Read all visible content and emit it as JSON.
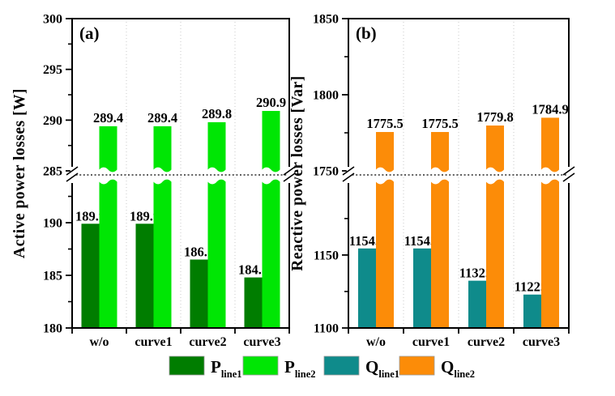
{
  "figure": {
    "background": "#ffffff",
    "frame_color": "#000000",
    "grid_color": "#c8c8c8",
    "break_line_style": "dashed",
    "legend_position": "bottom",
    "legend": [
      {
        "swatch_color": "#007D00",
        "label_main": "P",
        "label_sub": "line1"
      },
      {
        "swatch_color": "#00E604",
        "label_main": "P",
        "label_sub": "line2"
      },
      {
        "swatch_color": "#0F8B8B",
        "label_main": "Q",
        "label_sub": "line1"
      },
      {
        "swatch_color": "#FC8C08",
        "label_main": "Q",
        "label_sub": "line2"
      }
    ]
  },
  "chart_data": [
    {
      "type": "bar",
      "panel_label": "(a)",
      "ylabel": "Active power losses [W]",
      "categories": [
        "w/o",
        "curve1",
        "curve2",
        "curve3"
      ],
      "series": [
        {
          "name": "P_line1",
          "color": "#007D00",
          "values": [
            189.9,
            189.9,
            186.5,
            184.8
          ],
          "broken": false
        },
        {
          "name": "P_line2",
          "color": "#00E604",
          "values": [
            289.4,
            289.4,
            289.8,
            290.9
          ],
          "broken": true
        }
      ],
      "axis_break": true,
      "upper_axis": {
        "min": 285,
        "max": 300,
        "major_ticks": [
          285,
          290,
          295,
          300
        ],
        "minor_ticks": [
          287.5,
          292.5,
          297.5
        ]
      },
      "lower_axis": {
        "min": 180,
        "max": 194,
        "major_ticks": [
          180,
          185,
          190
        ],
        "minor_ticks": [
          182.5,
          187.5,
          192.5
        ]
      },
      "grid": "vertical-dotted"
    },
    {
      "type": "bar",
      "panel_label": "(b)",
      "ylabel": "Reactive power losses [Var]",
      "categories": [
        "w/o",
        "curve1",
        "curve2",
        "curve3"
      ],
      "series": [
        {
          "name": "Q_line1",
          "color": "#0F8B8B",
          "values": [
            1154.5,
            1154.5,
            1132.4,
            1122.9
          ],
          "broken": false
        },
        {
          "name": "Q_line2",
          "color": "#FC8C08",
          "values": [
            1775.5,
            1775.5,
            1779.8,
            1784.9
          ],
          "broken": true
        }
      ],
      "axis_break": true,
      "upper_axis": {
        "min": 1750,
        "max": 1850,
        "major_ticks": [
          1750,
          1800,
          1850
        ],
        "minor_ticks": [
          1775,
          1825
        ]
      },
      "lower_axis": {
        "min": 1100,
        "max": 1201,
        "major_ticks": [
          1100,
          1150
        ],
        "minor_ticks": [
          1125,
          1175
        ]
      },
      "grid": "vertical-dotted"
    }
  ]
}
